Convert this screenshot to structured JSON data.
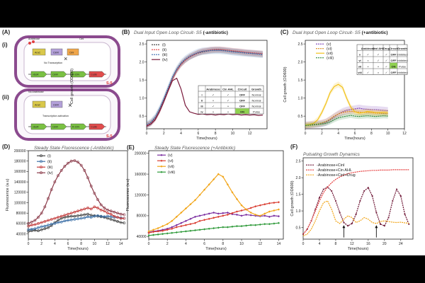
{
  "panels": {
    "a": {
      "label": "(A)",
      "sub_i": "(i)",
      "sub_ii": "(ii)",
      "diagram_labels": {
        "arabinose": "Arabinose",
        "no_arabinose": "No Arabinose",
        "cinl": "CinI",
        "arac": "AraC",
        "cinr": "CinR",
        "cini": "CinI",
        "no_transcription": "No Transcription",
        "transcription_activation": "Transcription activation",
        "vsr": "vSsR",
        "rbs": "R-CIN",
        "ccdb": "CcdB",
        "s5": "S-5"
      }
    },
    "b": {
      "label": "(B)",
      "title": "Dual Input Open Loop Circuit- S5",
      "title_bold": "(-antibiotic)"
    },
    "c": {
      "label": "(C)",
      "title": "Dual Input Open Loop Circuit- S5",
      "title_bold": "(+antibiotic)"
    },
    "d": {
      "label": "(D)",
      "title": "Steady State Fluorescence (-Antibiotic)"
    },
    "e": {
      "label": "(E)",
      "title": "Steady State Fluorescence (+Antibiotic)"
    },
    "f": {
      "label": "(F)",
      "title": "Pulsating Growth Dynamics"
    }
  },
  "tables": {
    "b": {
      "headers": [
        "",
        "Arabinose",
        "Cin AHL",
        "Circuit",
        "Growth"
      ],
      "rows": [
        [
          "i",
          "✓",
          "✓",
          "OFF",
          "Normal"
        ],
        [
          "ii",
          "×",
          "✓",
          "OFF",
          "Normal"
        ],
        [
          "iii",
          "✓",
          "×",
          "OFF",
          "Normal"
        ],
        [
          "iv",
          "×",
          "×",
          "ON",
          "Pulse"
        ]
      ],
      "on_color": "#8fd14f"
    },
    "c": {
      "headers": [
        "",
        "Arabinose",
        "CinI AHL",
        "Drug",
        "Circuit",
        "Growth"
      ],
      "rows": [
        [
          "v",
          "✓",
          "✓",
          "✓",
          "OFF",
          "Inhibited"
        ],
        [
          "vi",
          "×",
          "✓",
          "✓",
          "OFF",
          "Inhibited"
        ],
        [
          "vii",
          "×",
          "×",
          "✓",
          "ON",
          "Pulse"
        ],
        [
          "viii",
          "✓",
          "×",
          "✓",
          "OFF",
          "Inhibited"
        ]
      ],
      "on_color": "#8fd14f"
    }
  },
  "chart_data": [
    {
      "id": "B",
      "type": "line",
      "ylabel": "Cell growth (OD600)",
      "xlabel": "Time(hours)",
      "xlim": [
        0,
        14
      ],
      "ylim": [
        0.15,
        2.6
      ],
      "xticks": [
        0,
        2,
        4,
        6,
        8,
        10,
        12
      ],
      "yticks": [
        0.5,
        1.0,
        1.5,
        2.0,
        2.5
      ],
      "x": [
        0,
        0.5,
        1,
        1.5,
        2,
        2.5,
        3,
        3.5,
        4,
        4.5,
        5,
        5.5,
        6,
        6.5,
        7,
        7.5,
        8,
        8.5,
        9,
        9.5,
        10,
        10.5,
        11,
        11.5,
        12,
        12.5,
        13,
        13.5
      ],
      "series": [
        {
          "name": "(i)",
          "color": "#333333",
          "dash": "2,1",
          "band": 0.08,
          "values": [
            0.25,
            0.32,
            0.45,
            0.68,
            0.95,
            1.25,
            1.55,
            1.78,
            1.95,
            2.06,
            2.14,
            2.2,
            2.25,
            2.28,
            2.3,
            2.32,
            2.33,
            2.33,
            2.32,
            2.3,
            2.29,
            2.28,
            2.26,
            2.25,
            2.24,
            2.23,
            2.22,
            2.21
          ]
        },
        {
          "name": "(ii)",
          "color": "#e53b3b",
          "dash": "2,1",
          "band": 0.08,
          "values": [
            0.24,
            0.3,
            0.42,
            0.64,
            0.92,
            1.22,
            1.52,
            1.76,
            1.93,
            2.05,
            2.14,
            2.2,
            2.26,
            2.3,
            2.32,
            2.34,
            2.35,
            2.35,
            2.34,
            2.33,
            2.31,
            2.3,
            2.29,
            2.27,
            2.26,
            2.25,
            2.24,
            2.23
          ]
        },
        {
          "name": "(iii)",
          "color": "#3d6fb0",
          "dash": "2,1",
          "band": 0.1,
          "values": [
            0.26,
            0.33,
            0.47,
            0.7,
            0.98,
            1.28,
            1.58,
            1.8,
            1.97,
            2.08,
            2.16,
            2.22,
            2.27,
            2.3,
            2.31,
            2.32,
            2.32,
            2.32,
            2.31,
            2.3,
            2.28,
            2.27,
            2.26,
            2.25,
            2.24,
            2.23,
            2.22,
            2.21
          ]
        },
        {
          "name": "(iv)",
          "color": "#7a1a3c",
          "dash": "",
          "band": 0,
          "values": [
            0.22,
            0.28,
            0.4,
            0.62,
            0.9,
            1.2,
            1.48,
            1.55,
            1.25,
            0.8,
            0.62,
            0.58,
            0.55,
            0.56,
            0.54,
            0.55,
            0.53,
            0.55,
            0.54,
            0.56,
            0.54,
            0.55,
            0.53,
            0.54,
            0.53,
            0.54,
            0.52,
            0.53
          ]
        }
      ]
    },
    {
      "id": "C",
      "type": "line",
      "ylabel": "Cell growth (OD600)",
      "xlabel": "Time(hours)",
      "xlim": [
        0,
        12
      ],
      "ylim": [
        0.15,
        2.6
      ],
      "xticks": [
        0,
        2,
        4,
        6,
        8,
        10,
        12
      ],
      "yticks": [
        0.5,
        1.0,
        1.5,
        2.0,
        2.5
      ],
      "x": [
        0,
        0.5,
        1,
        1.5,
        2,
        2.5,
        3,
        3.5,
        4,
        4.5,
        5,
        5.5,
        6,
        6.5,
        7,
        7.5,
        8,
        8.5,
        9,
        9.5,
        10
      ],
      "series": [
        {
          "name": "(v)",
          "color": "#7b3fb5",
          "dash": "2,1",
          "band": 0.1,
          "values": [
            0.25,
            0.26,
            0.27,
            0.28,
            0.3,
            0.33,
            0.4,
            0.48,
            0.56,
            0.62,
            0.66,
            0.68,
            0.7,
            0.72,
            0.7,
            0.69,
            0.68,
            0.68,
            0.67,
            0.66,
            0.65
          ]
        },
        {
          "name": "(vi)",
          "color": "#d98a1a",
          "dash": "2,1",
          "band": 0.08,
          "values": [
            0.24,
            0.25,
            0.26,
            0.28,
            0.31,
            0.35,
            0.42,
            0.5,
            0.56,
            0.6,
            0.62,
            0.63,
            0.62,
            0.61,
            0.6,
            0.6,
            0.59,
            0.58,
            0.58,
            0.57,
            0.57
          ]
        },
        {
          "name": "(vii)",
          "color": "#f2c21a",
          "dash": "",
          "band": 0.08,
          "values": [
            0.25,
            0.27,
            0.3,
            0.4,
            0.6,
            0.85,
            1.15,
            1.32,
            1.38,
            1.3,
            1.0,
            0.75,
            0.62,
            0.58,
            0.6,
            0.63,
            0.62,
            0.6,
            0.6,
            0.61,
            0.6
          ]
        },
        {
          "name": "(viii)",
          "color": "#2f8a3a",
          "dash": "2,1",
          "band": 0.07,
          "values": [
            0.24,
            0.25,
            0.26,
            0.27,
            0.28,
            0.3,
            0.34,
            0.4,
            0.45,
            0.48,
            0.5,
            0.52,
            0.5,
            0.49,
            0.5,
            0.51,
            0.5,
            0.49,
            0.5,
            0.51,
            0.5
          ]
        }
      ]
    },
    {
      "id": "D",
      "type": "line",
      "ylabel": "Fluorescence (a.u)",
      "xlabel": "Time(hours)",
      "xlim": [
        0,
        15
      ],
      "ylim": [
        30000,
        200000
      ],
      "xticks": [
        0,
        2,
        4,
        6,
        8,
        10,
        12,
        14
      ],
      "yticks": [
        40000,
        60000,
        80000,
        100000,
        120000,
        140000,
        160000,
        180000,
        200000
      ],
      "x": [
        0,
        0.5,
        1,
        1.5,
        2,
        2.5,
        3,
        3.5,
        4,
        4.5,
        5,
        5.5,
        6,
        6.5,
        7,
        7.5,
        8,
        8.5,
        9,
        9.5,
        10,
        10.5,
        11,
        11.5,
        12,
        12.5,
        13,
        13.5,
        14,
        14.5
      ],
      "series": [
        {
          "name": "(i)",
          "color": "#444444",
          "marker": "circle",
          "values": [
            45000,
            46000,
            47000,
            46000,
            48000,
            50000,
            52000,
            56000,
            62000,
            66000,
            70000,
            72000,
            73000,
            74000,
            74000,
            75000,
            76000,
            77000,
            78000,
            76000,
            75000,
            74000,
            73000,
            72000,
            70000,
            68000,
            66000,
            64000,
            62000,
            61000
          ]
        },
        {
          "name": "(ii)",
          "color": "#3b6fa6",
          "marker": "circle",
          "values": [
            48000,
            49000,
            50000,
            52000,
            54000,
            55000,
            57000,
            59000,
            60000,
            62000,
            63000,
            65000,
            66000,
            67000,
            68000,
            69000,
            70000,
            71000,
            73000,
            72000,
            74000,
            75000,
            74000,
            73000,
            74000,
            73000,
            72000,
            72000,
            71000,
            70000
          ]
        },
        {
          "name": "(iii)",
          "color": "#c23b3b",
          "marker": "circle",
          "values": [
            55000,
            57000,
            58000,
            60000,
            62000,
            64000,
            66000,
            68000,
            70000,
            72000,
            74000,
            76000,
            78000,
            80000,
            82000,
            84000,
            86000,
            88000,
            90000,
            88000,
            92000,
            90000,
            86000,
            84000,
            80000,
            78000,
            74000,
            72000,
            70000,
            70000
          ]
        },
        {
          "name": "(iv)",
          "color": "#8b3b4a",
          "marker": "circle",
          "values": [
            60000,
            63000,
            66000,
            72000,
            80000,
            92000,
            108000,
            125000,
            140000,
            152000,
            162000,
            170000,
            176000,
            180000,
            181000,
            178000,
            172000,
            162000,
            148000,
            132000,
            118000,
            106000,
            96000,
            90000,
            86000,
            84000,
            82000,
            80000,
            78000,
            77000
          ]
        }
      ]
    },
    {
      "id": "E",
      "type": "line",
      "ylabel": "Fluorescence (a.u)",
      "xlabel": "Time(hours)",
      "xlim": [
        0,
        14.5
      ],
      "ylim": [
        35000,
        205000
      ],
      "xticks": [
        0,
        2,
        4,
        6,
        8,
        10,
        12,
        14
      ],
      "yticks": [
        40000,
        80000,
        120000,
        160000,
        200000
      ],
      "x": [
        0,
        0.5,
        1,
        1.5,
        2,
        2.5,
        3,
        3.5,
        4,
        4.5,
        5,
        5.5,
        6,
        6.5,
        7,
        7.5,
        8,
        8.5,
        9,
        9.5,
        10,
        10.5,
        11,
        11.5,
        12,
        12.5,
        13,
        13.5,
        14
      ],
      "series": [
        {
          "name": "(v)",
          "color": "#7b2fa0",
          "marker": "diamond",
          "values": [
            48000,
            50000,
            51000,
            53000,
            55000,
            58000,
            62000,
            66000,
            70000,
            74000,
            78000,
            80000,
            82000,
            84000,
            86000,
            84000,
            85000,
            86000,
            83000,
            82000,
            80000,
            82000,
            81000,
            80000,
            79000,
            80000,
            78000,
            80000,
            79000
          ]
        },
        {
          "name": "(vi)",
          "color": "#d93b2f",
          "marker": "diamond",
          "values": [
            47000,
            49000,
            50000,
            51000,
            53000,
            55000,
            58000,
            60000,
            62000,
            64000,
            66000,
            70000,
            72000,
            74000,
            76000,
            78000,
            80000,
            82000,
            85000,
            88000,
            90000,
            92000,
            95000,
            98000,
            100000,
            102000,
            104000,
            105000,
            106000
          ]
        },
        {
          "name": "(vii)",
          "color": "#f2a61a",
          "marker": "diamond",
          "values": [
            50000,
            53000,
            56000,
            60000,
            64000,
            70000,
            78000,
            86000,
            94000,
            102000,
            110000,
            120000,
            130000,
            140000,
            150000,
            160000,
            155000,
            140000,
            125000,
            112000,
            100000,
            92000,
            86000,
            82000,
            80000,
            84000,
            88000,
            90000,
            92000
          ]
        },
        {
          "name": "(viii)",
          "color": "#2f9a3a",
          "marker": "diamond",
          "values": [
            42000,
            43000,
            44000,
            45000,
            46000,
            47000,
            48000,
            49000,
            50000,
            51000,
            52000,
            53000,
            54000,
            55000,
            56000,
            57000,
            58000,
            58000,
            59000,
            60000,
            60000,
            61000,
            62000,
            62000,
            63000,
            64000,
            64000,
            65000,
            66000
          ]
        }
      ]
    },
    {
      "id": "F",
      "type": "line",
      "ylabel": "Cell growth (OD600)",
      "xlabel": "Time(hours)",
      "xlim": [
        0,
        27
      ],
      "ylim": [
        0.15,
        2.6
      ],
      "xticks": [
        0,
        4,
        8,
        12,
        16,
        20,
        24
      ],
      "yticks": [
        0.5,
        1.0,
        1.5,
        2.0,
        2.5
      ],
      "x": [
        0,
        1,
        2,
        3,
        4,
        5,
        6,
        7,
        8,
        9,
        10,
        11,
        12,
        13,
        14,
        15,
        16,
        17,
        18,
        19,
        20,
        21,
        22,
        23,
        24,
        25,
        26
      ],
      "series": [
        {
          "name": "-Arabinose+CinI",
          "color": "#6a1030",
          "dash": "2,1",
          "marker": "square",
          "values": [
            0.3,
            0.45,
            0.7,
            1.05,
            1.4,
            1.65,
            1.72,
            1.6,
            1.3,
            0.95,
            0.65,
            0.55,
            0.62,
            0.9,
            1.3,
            1.6,
            1.7,
            1.45,
            0.95,
            0.6,
            0.55,
            0.8,
            1.3,
            1.65,
            1.45,
            0.9,
            0.6
          ]
        },
        {
          "name": "-Arabinose+Cin AHL",
          "color": "#e53b3b",
          "dash": "2,1",
          "marker": "",
          "values": [
            0.3,
            0.45,
            0.7,
            1.0,
            1.3,
            1.55,
            1.72,
            1.85,
            1.95,
            2.02,
            2.08,
            2.12,
            2.15,
            2.17,
            2.19,
            2.2,
            2.21,
            2.22,
            2.22,
            2.23,
            2.23,
            2.23,
            2.24,
            2.24,
            2.24,
            2.24,
            2.24
          ]
        },
        {
          "name": "-Arabinose+CinI+Drug",
          "color": "#f2a61a",
          "dash": "2,1",
          "marker": "",
          "values": [
            0.25,
            0.3,
            0.45,
            0.7,
            1.0,
            1.25,
            1.3,
            1.05,
            0.7,
            0.62,
            0.75,
            0.85,
            0.8,
            0.65,
            0.7,
            0.8,
            0.75,
            0.65,
            0.62,
            0.68,
            0.7,
            0.68,
            0.66,
            0.65,
            0.66,
            0.64,
            0.63
          ]
        }
      ],
      "arrows": [
        10,
        18
      ]
    }
  ]
}
